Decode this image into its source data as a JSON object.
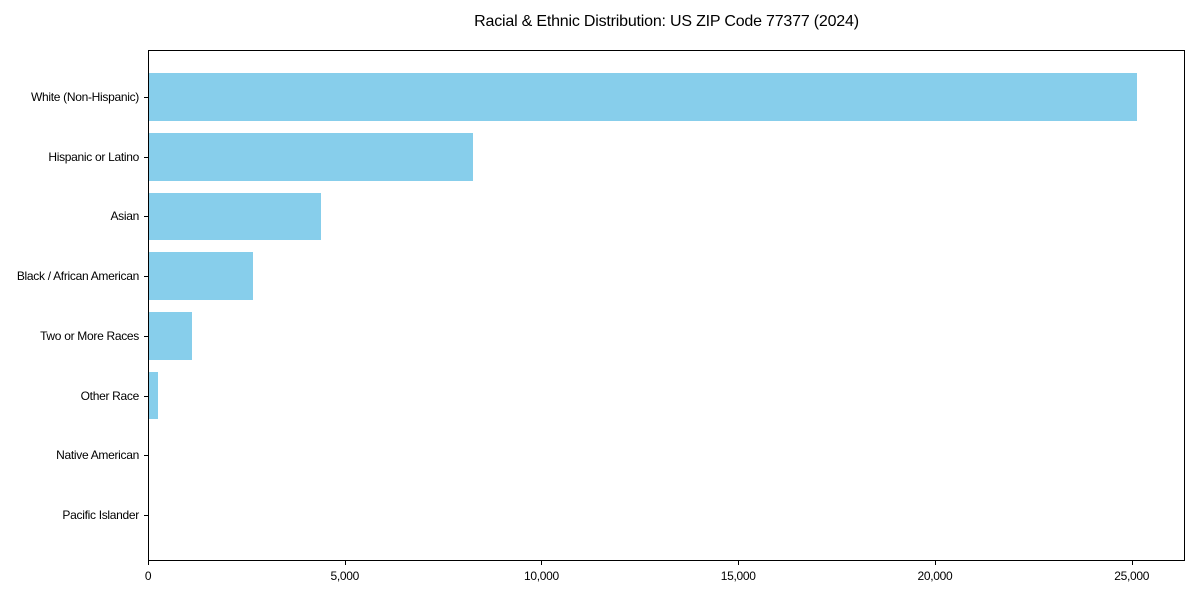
{
  "chart_data": {
    "type": "bar",
    "orientation": "horizontal",
    "title": "Racial & Ethnic Distribution: US ZIP Code 77377 (2024)",
    "xlabel": "",
    "ylabel": "",
    "categories": [
      "White (Non-Hispanic)",
      "Hispanic or Latino",
      "Asian",
      "Black / African American",
      "Two or More Races",
      "Other Race",
      "Native American",
      "Pacific Islander"
    ],
    "values": [
      25100,
      8240,
      4370,
      2640,
      1090,
      230,
      0,
      0
    ],
    "xlim": [
      0,
      26355
    ],
    "xticks": [
      0,
      5000,
      10000,
      15000,
      20000,
      25000
    ],
    "xtick_labels": [
      "0",
      "5,000",
      "10,000",
      "15,000",
      "20,000",
      "25,000"
    ],
    "grid": false,
    "legend": null,
    "bar_color": "#87ceeb"
  },
  "title": "Racial & Ethnic Distribution: US ZIP Code 77377 (2024)",
  "colors": {
    "bar": "#87ceeb",
    "axis": "#000000",
    "background": "#ffffff"
  }
}
